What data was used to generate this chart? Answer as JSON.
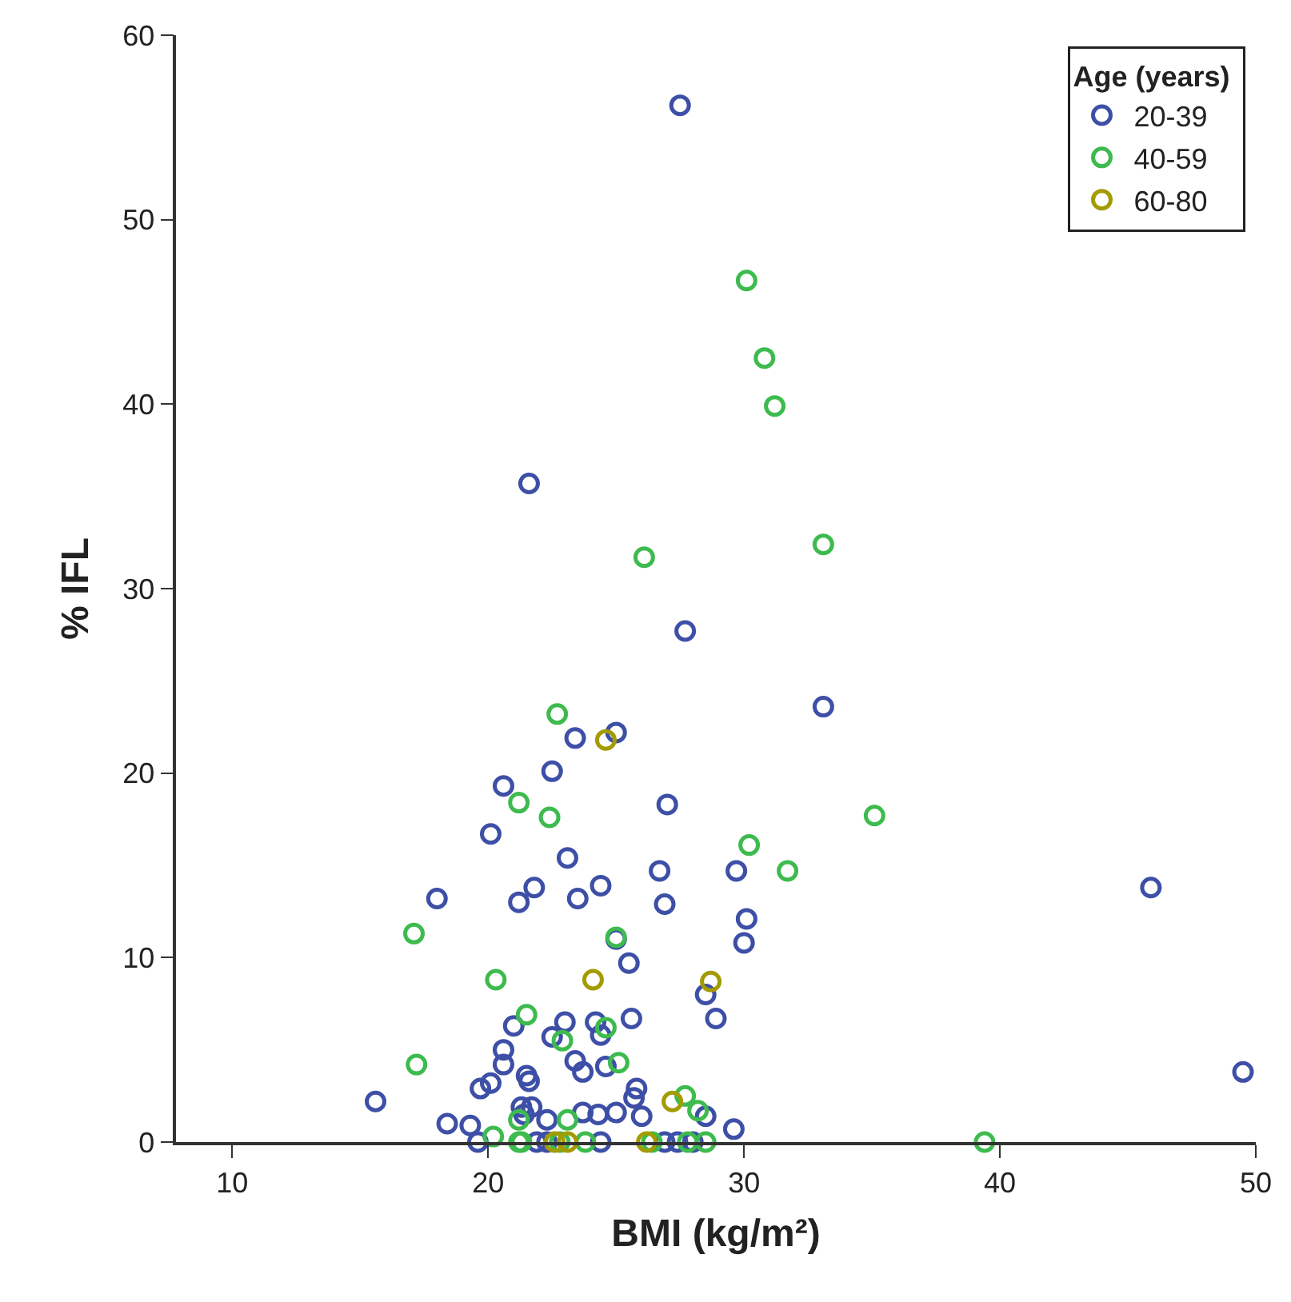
{
  "chart_data": {
    "type": "scatter",
    "xlabel": "BMI (kg/m²)",
    "ylabel": "% IFL",
    "legend_title": "Age (years)",
    "legend": "top right",
    "marker": "circle",
    "grid": false,
    "xlim": [
      7.8,
      50
    ],
    "xticks": [
      10,
      20,
      30,
      40,
      50
    ],
    "ylim": [
      0,
      60
    ],
    "yticks": [
      0,
      10,
      20,
      30,
      40,
      50,
      60
    ],
    "series": [
      {
        "name": "20-39",
        "color": "#3d4fa6",
        "x": [
          27.5,
          21.6,
          27.7,
          33.1,
          23.4,
          25.0,
          22.5,
          20.6,
          27.0,
          20.1,
          23.1,
          26.7,
          29.7,
          18.0,
          21.8,
          21.2,
          23.5,
          24.4,
          26.9,
          30.1,
          30.0,
          45.9,
          49.5,
          25.0,
          25.5,
          28.5,
          28.9,
          25.6,
          21.0,
          23.0,
          24.2,
          24.4,
          22.5,
          20.6,
          20.6,
          23.4,
          23.7,
          24.6,
          21.5,
          21.6,
          20.1,
          19.7,
          15.6,
          25.8,
          25.7,
          28.5,
          21.7,
          18.4,
          19.3,
          23.7,
          24.3,
          25.0,
          26.0,
          29.6,
          22.3,
          21.3,
          21.4,
          19.6,
          21.9,
          22.3,
          24.4,
          26.9,
          27.4,
          28.0
        ],
        "values": [
          56.2,
          35.7,
          27.7,
          23.6,
          21.9,
          22.2,
          20.1,
          19.3,
          18.3,
          16.7,
          15.4,
          14.7,
          14.7,
          13.2,
          13.8,
          13.0,
          13.2,
          13.9,
          12.9,
          12.1,
          10.8,
          13.8,
          3.8,
          11.0,
          9.7,
          8.0,
          6.7,
          6.7,
          6.3,
          6.5,
          6.5,
          5.8,
          5.7,
          5.0,
          4.2,
          4.4,
          3.8,
          4.1,
          3.6,
          3.3,
          3.2,
          2.9,
          2.2,
          2.9,
          2.4,
          1.4,
          1.9,
          1.0,
          0.9,
          1.6,
          1.5,
          1.6,
          1.4,
          0.7,
          1.2,
          1.9,
          1.5,
          0,
          0,
          0,
          0,
          0,
          0,
          0
        ]
      },
      {
        "name": "40-59",
        "color": "#3dbb4e",
        "x": [
          30.1,
          30.8,
          31.2,
          33.1,
          26.1,
          22.7,
          21.2,
          22.4,
          35.1,
          30.2,
          31.7,
          17.1,
          25.0,
          20.3,
          21.5,
          24.6,
          22.9,
          17.2,
          25.1,
          27.7,
          28.2,
          20.2,
          23.1,
          21.2,
          21.2,
          21.3,
          22.8,
          23.8,
          26.4,
          27.8,
          28.5,
          39.4
        ],
        "values": [
          46.7,
          42.5,
          39.9,
          32.4,
          31.7,
          23.2,
          18.4,
          17.6,
          17.7,
          16.1,
          14.7,
          11.3,
          11.1,
          8.8,
          6.9,
          6.2,
          5.5,
          4.2,
          4.3,
          2.5,
          1.7,
          0.3,
          1.2,
          1.2,
          0,
          0,
          0,
          0,
          0,
          0,
          0,
          0
        ]
      },
      {
        "name": "60-80",
        "color": "#a39b00",
        "x": [
          24.6,
          24.1,
          28.7,
          27.2,
          22.6,
          23.1,
          26.2
        ],
        "values": [
          21.8,
          8.8,
          8.7,
          2.2,
          0,
          0,
          0
        ]
      }
    ]
  }
}
